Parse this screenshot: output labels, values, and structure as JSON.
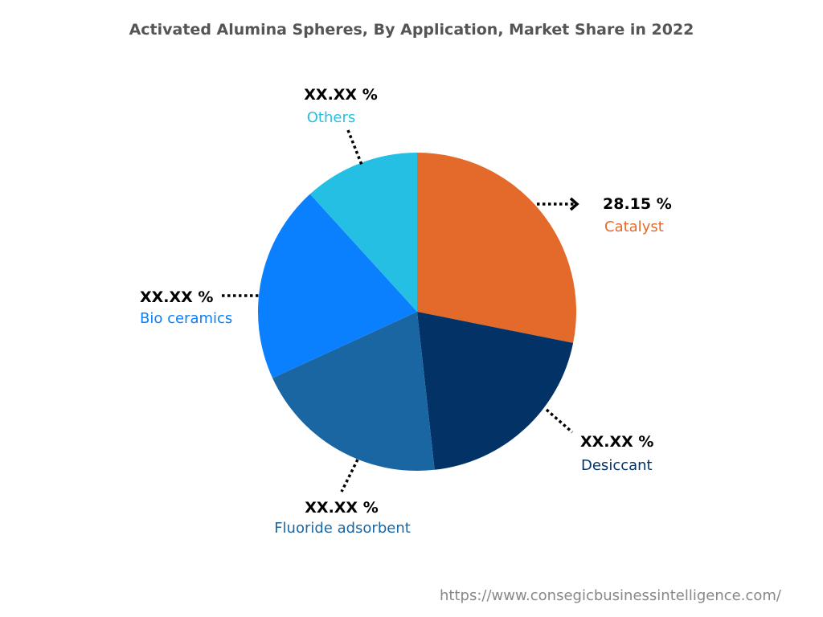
{
  "chart_data": {
    "type": "pie",
    "title": "Activated Alumina Spheres, By Application, Market Share in 2022",
    "start": "top",
    "direction": "clockwise",
    "slices": [
      {
        "name": "Catalyst",
        "value": 28.15,
        "label": "28.15 %",
        "color": "#E36A2A"
      },
      {
        "name": "Desiccant",
        "value": 20.1,
        "label": "XX.XX %",
        "color": "#033366"
      },
      {
        "name": "Fluoride adsorbent",
        "value": 19.9,
        "label": "XX.XX %",
        "color": "#1A66A3"
      },
      {
        "name": "Bio ceramics",
        "value": 20.1,
        "label": "XX.XX %",
        "color": "#0A80FE"
      },
      {
        "name": "Others",
        "value": 11.75,
        "label": "XX.XX %",
        "color": "#26BFE4"
      }
    ]
  },
  "source": "https://www.consegicbusinessintelligence.com/"
}
